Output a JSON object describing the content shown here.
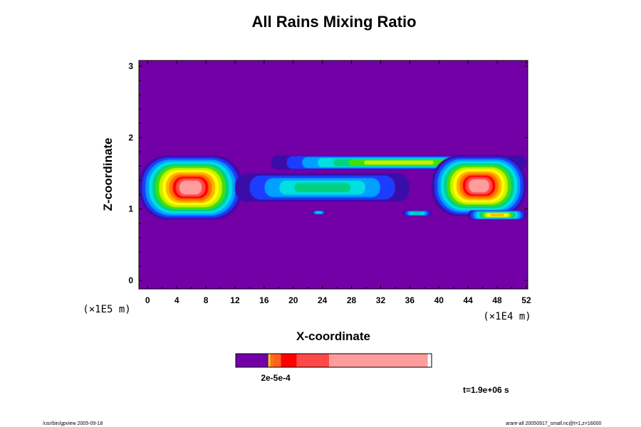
{
  "chart_data": {
    "type": "heatmap",
    "title": "All Rains Mixing Ratio",
    "xlabel": "X-coordinate",
    "ylabel": "Z-coordinate",
    "x_unit": "(×1E4 m)",
    "y_unit": "(×1E5 m)",
    "xlim": [
      -1.2,
      52.2
    ],
    "ylim": [
      -0.12,
      3.08
    ],
    "x_ticks": [
      0,
      4,
      8,
      12,
      16,
      20,
      24,
      28,
      32,
      36,
      40,
      44,
      48,
      52
    ],
    "y_ticks": [
      0,
      1,
      2,
      3
    ],
    "background_color": "#7300a6",
    "level_colors": [
      "#3a0ea8",
      "#1e3cff",
      "#00a0ff",
      "#00e0e0",
      "#00d080",
      "#40e000",
      "#c8f000",
      "#ffff00",
      "#ffb000",
      "#ff7000",
      "#ff0000",
      "#ff4848",
      "#ff9c9c"
    ],
    "features": [
      {
        "name": "upper band",
        "x_range": [
          17,
          52
        ],
        "z_range": [
          1.55,
          1.75
        ],
        "peak_level": 6
      },
      {
        "name": "western cloud",
        "x_range": [
          -1.2,
          13
        ],
        "z_range": [
          0.85,
          1.75
        ],
        "peak_level": 12
      },
      {
        "name": "tilted streamer",
        "x_range": [
          12,
          36
        ],
        "z_range": [
          1.1,
          1.5
        ],
        "peak_level": 4
      },
      {
        "name": "eastern cloud",
        "x_range": [
          39,
          52
        ],
        "z_range": [
          0.9,
          1.75
        ],
        "peak_level": 12
      },
      {
        "name": "small blob 1",
        "x_range": [
          22.5,
          24.5
        ],
        "z_range": [
          0.92,
          0.98
        ],
        "peak_level": 3
      },
      {
        "name": "small blob 2",
        "x_range": [
          35,
          39
        ],
        "z_range": [
          0.9,
          0.98
        ],
        "peak_level": 4
      },
      {
        "name": "small blob 3",
        "x_range": [
          44,
          52
        ],
        "z_range": [
          0.85,
          0.98
        ],
        "peak_level": 8
      }
    ],
    "colorbar": {
      "segments": [
        {
          "color": "#7300a6",
          "width": 0.167
        },
        {
          "color": "#ffff00",
          "width": 0.004
        },
        {
          "color": "#ffb000",
          "width": 0.006
        },
        {
          "color": "#ff7000",
          "width": 0.013
        },
        {
          "color": "#ff6020",
          "width": 0.04
        },
        {
          "color": "#ff0000",
          "width": 0.082
        },
        {
          "color": "#ff4848",
          "width": 0.165
        },
        {
          "color": "#ff9c9c",
          "width": 0.503
        }
      ],
      "label": "2e-5e-4"
    },
    "time_label": "t=1.9e+06 s"
  },
  "footer": {
    "left": "/usr/bin/gpview 2005-09-18",
    "right": "arare-all  20050917_small.nc@t=1,z=16000"
  }
}
